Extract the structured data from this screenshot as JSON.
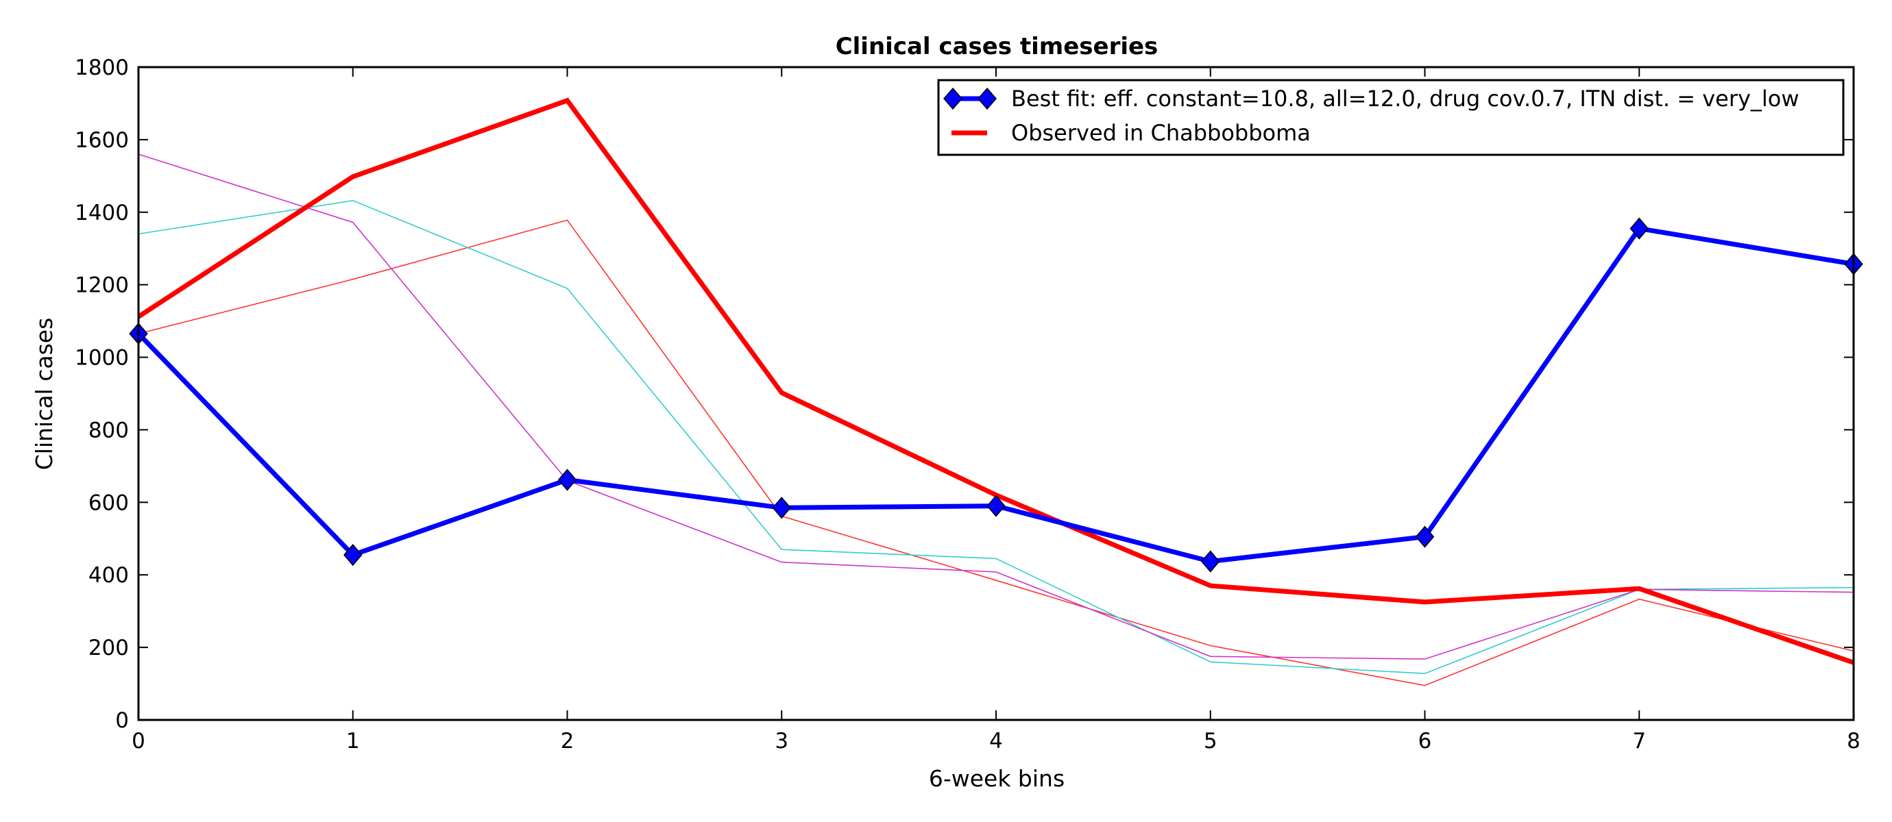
{
  "chart_data": {
    "type": "line",
    "title": "Clinical cases timeseries",
    "xlabel": "6-week bins",
    "ylabel": "Clinical cases",
    "xlim": [
      0,
      8
    ],
    "ylim": [
      0,
      1800
    ],
    "x_ticks": [
      "0",
      "1",
      "2",
      "3",
      "4",
      "5",
      "6",
      "7",
      "8"
    ],
    "y_ticks": [
      "0",
      "200",
      "400",
      "600",
      "800",
      "1000",
      "1200",
      "1400",
      "1600",
      "1800"
    ],
    "grid": false,
    "legend_position": "top-right",
    "x": [
      0,
      1,
      2,
      3,
      4,
      5,
      6,
      7,
      8
    ],
    "series": [
      {
        "name": "",
        "color": "#ff3333",
        "style": "thin",
        "values": [
          1065,
          1215,
          1378,
          562,
          385,
          205,
          95,
          333,
          190
        ]
      },
      {
        "name": "",
        "color": "#33cccc",
        "style": "thin",
        "values": [
          1340,
          1432,
          1190,
          470,
          445,
          160,
          128,
          360,
          365
        ]
      },
      {
        "name": "",
        "color": "#cc33cc",
        "style": "thin",
        "values": [
          1560,
          1372,
          660,
          435,
          408,
          175,
          168,
          360,
          352
        ]
      },
      {
        "name": "Observed in Chabbobboma",
        "color": "#ff0000",
        "style": "thick",
        "values": [
          1112,
          1498,
          1708,
          902,
          620,
          370,
          325,
          362,
          158
        ]
      },
      {
        "name": "Best fit: eff. constant=10.8, all=12.0, drug cov.0.7, ITN dist. = very_low",
        "color": "#0000ff",
        "style": "thick-diamond",
        "values": [
          1065,
          455,
          662,
          585,
          590,
          437,
          505,
          1355,
          1257
        ]
      }
    ],
    "legend": [
      {
        "label": "Best fit: eff. constant=10.8, all=12.0, drug cov.0.7, ITN dist. = very_low",
        "color": "#0000ff",
        "marker": "diamond"
      },
      {
        "label": "Observed in Chabbobboma",
        "color": "#ff0000",
        "marker": "none"
      }
    ]
  }
}
